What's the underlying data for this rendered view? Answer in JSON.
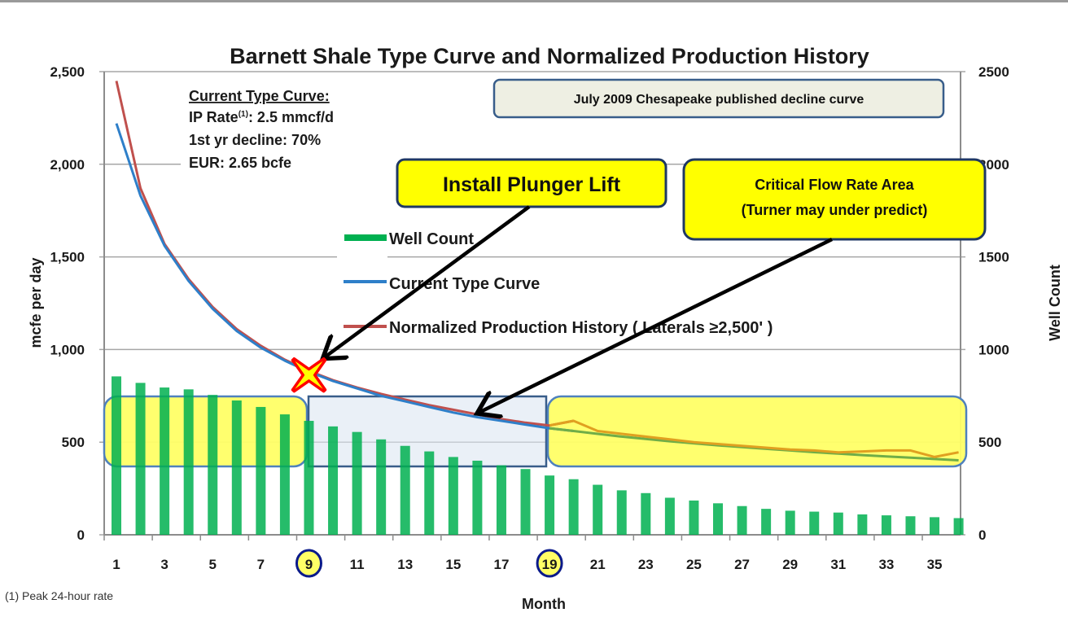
{
  "chart_data": {
    "type": "bar+line",
    "title": "Barnett Shale Type Curve and Normalized Production History",
    "xlabel": "Month",
    "ylabel_left": "mcfe per day",
    "ylabel_right": "Well Count",
    "ylim_left": [
      0,
      2500
    ],
    "ylim_right": [
      0,
      2500
    ],
    "yticks_left": [
      "0",
      "500",
      "1,000",
      "1,500",
      "2,000",
      "2,500"
    ],
    "yticks_right": [
      "0",
      "500",
      "1000",
      "1500",
      "2000",
      "2500"
    ],
    "x": [
      1,
      2,
      3,
      4,
      5,
      6,
      7,
      8,
      9,
      10,
      11,
      12,
      13,
      14,
      15,
      16,
      17,
      18,
      19,
      20,
      21,
      22,
      23,
      24,
      25,
      26,
      27,
      28,
      29,
      30,
      31,
      32,
      33,
      34,
      35,
      36
    ],
    "xtick_labels": [
      "1",
      "3",
      "5",
      "7",
      "9",
      "11",
      "13",
      "15",
      "17",
      "19",
      "21",
      "23",
      "25",
      "27",
      "29",
      "31",
      "33",
      "35"
    ],
    "highlighted_ticks": [
      "9",
      "19"
    ],
    "grid": true,
    "legend_position": "center",
    "series": [
      {
        "name": "Well Count",
        "kind": "bar",
        "axis": "right",
        "color": "#00b050",
        "values": [
          855,
          820,
          795,
          785,
          755,
          725,
          690,
          650,
          615,
          585,
          555,
          515,
          480,
          450,
          420,
          400,
          375,
          355,
          320,
          300,
          270,
          240,
          225,
          200,
          185,
          170,
          155,
          140,
          130,
          125,
          120,
          110,
          105,
          100,
          95,
          90
        ]
      },
      {
        "name": "Current Type Curve",
        "kind": "line",
        "axis": "left",
        "color": "#2e7fc9",
        "values": [
          2220,
          1830,
          1560,
          1370,
          1220,
          1100,
          1010,
          940,
          880,
          830,
          790,
          750,
          720,
          690,
          660,
          635,
          615,
          595,
          575,
          560,
          545,
          530,
          517,
          505,
          494,
          483,
          473,
          464,
          455,
          446,
          438,
          430,
          423,
          416,
          409,
          402
        ]
      },
      {
        "name": "Normalized Production History ( Laterals ≥2,500' )",
        "kind": "line",
        "axis": "left",
        "color": "#c0504d",
        "values": [
          2450,
          1870,
          1570,
          1380,
          1230,
          1110,
          1020,
          945,
          885,
          835,
          795,
          760,
          730,
          700,
          675,
          650,
          625,
          605,
          590,
          615,
          560,
          545,
          530,
          515,
          500,
          490,
          480,
          470,
          460,
          455,
          445,
          450,
          455,
          455,
          420,
          445
        ]
      }
    ],
    "annotations": {
      "type_curve_box": {
        "heading": "Current Type Curve:",
        "ip_rate_label": "IP Rate",
        "ip_rate_sup": "(1)",
        "ip_rate_value": ": 2.5 mmcf/d",
        "decline": "1st yr decline: 70%",
        "eur": "EUR: 2.65 bcfe"
      },
      "chesapeake_box": "July 2009 Chesapeake published  decline curve",
      "plunger_callout": "Install Plunger Lift",
      "critical_callout_line1": "Critical  Flow Rate Area",
      "critical_callout_line2": "(Turner may under predict)",
      "footnote": "(1) Peak 24-hour rate",
      "marker_month": 9,
      "marker_value": 880
    },
    "colors": {
      "yellow_highlight": "#ffff66",
      "blue_highlight": "#dce6f2",
      "callout_fill": "#ffff00",
      "callout_border": "#1f3864",
      "marker_fill": "#ffff00",
      "marker_stroke": "#ff0000",
      "late_history": "#e0a020",
      "late_type": "#70ad47"
    }
  }
}
